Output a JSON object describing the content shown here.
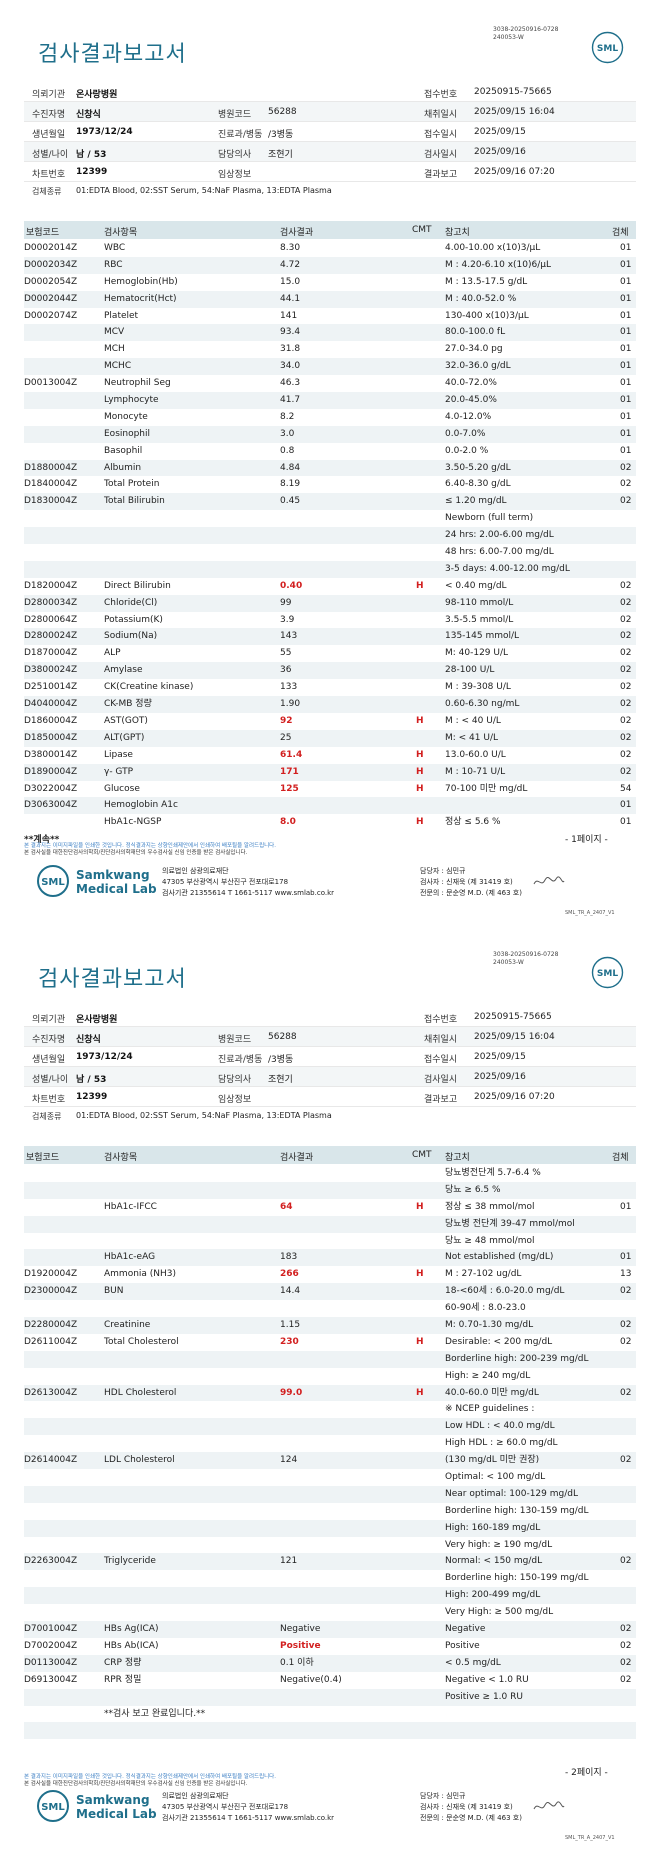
{
  "docno": [
    "3038-20250916-0728",
    "240053-W"
  ],
  "title": "검사결과보고서",
  "logo_text": "SML",
  "info": {
    "hospital_label": "의뢰기관",
    "hospital": "온사랑병원",
    "receipt_no_label": "접수번호",
    "receipt_no": "20250915-75665",
    "patient_label": "수진자명",
    "patient": "신창식",
    "hosp_code_label": "병원코드",
    "hosp_code": "56288",
    "collect_label": "채취일시",
    "collect": "2025/09/15 16:04",
    "dob_label": "생년월일",
    "dob": "1973/12/24",
    "dept_label": "진료과/병동",
    "dept": "/3병동",
    "receipt_date_label": "접수일시",
    "receipt_date": "2025/09/15",
    "sexage_label": "성별/나이",
    "sexage": "남 / 53",
    "doctor_label": "담당의사",
    "doctor": "조현기",
    "test_date_label": "검사일시",
    "test_date": "2025/09/16",
    "chart_label": "차트번호",
    "chart": "12399",
    "clinical_label": "임상정보",
    "clinical": "",
    "report_label": "결과보고",
    "report": "2025/09/16 07:20",
    "specimen_label": "검체종류",
    "specimen": "01:EDTA Blood, 02:SST Serum, 54:NaF Plasma, 13:EDTA Plasma"
  },
  "table_header": {
    "code": "보험코드",
    "item": "검사항목",
    "result": "검사결과",
    "cmt": "CMT",
    "ref": "참고치",
    "spec": "검체"
  },
  "page1_rows": [
    {
      "code": "D0002014Z",
      "item": "WBC",
      "result": "8.30",
      "flag": "",
      "ref": "4.00-10.00 x(10)3/μL",
      "spec": "01"
    },
    {
      "code": "D0002034Z",
      "item": "RBC",
      "result": "4.72",
      "flag": "",
      "ref": "M : 4.20-6.10 x(10)6/μL",
      "spec": "01"
    },
    {
      "code": "D0002054Z",
      "item": "Hemoglobin(Hb)",
      "result": "15.0",
      "flag": "",
      "ref": "M : 13.5-17.5 g/dL",
      "spec": "01"
    },
    {
      "code": "D0002044Z",
      "item": "Hematocrit(Hct)",
      "result": "44.1",
      "flag": "",
      "ref": "M : 40.0-52.0 %",
      "spec": "01"
    },
    {
      "code": "D0002074Z",
      "item": "Platelet",
      "result": "141",
      "flag": "",
      "ref": "130-400 x(10)3/μL",
      "spec": "01"
    },
    {
      "code": "",
      "item": "MCV",
      "result": "93.4",
      "flag": "",
      "ref": "80.0-100.0 fL",
      "spec": "01"
    },
    {
      "code": "",
      "item": "MCH",
      "result": "31.8",
      "flag": "",
      "ref": "27.0-34.0 pg",
      "spec": "01"
    },
    {
      "code": "",
      "item": "MCHC",
      "result": "34.0",
      "flag": "",
      "ref": "32.0-36.0 g/dL",
      "spec": "01"
    },
    {
      "code": "D0013004Z",
      "item": "Neutrophil Seg",
      "result": "46.3",
      "flag": "",
      "ref": "40.0-72.0%",
      "spec": "01"
    },
    {
      "code": "",
      "item": "Lymphocyte",
      "result": "41.7",
      "flag": "",
      "ref": "20.0-45.0%",
      "spec": "01"
    },
    {
      "code": "",
      "item": "Monocyte",
      "result": "8.2",
      "flag": "",
      "ref": "4.0-12.0%",
      "spec": "01"
    },
    {
      "code": "",
      "item": "Eosinophil",
      "result": "3.0",
      "flag": "",
      "ref": "0.0-7.0%",
      "spec": "01"
    },
    {
      "code": "",
      "item": "Basophil",
      "result": "0.8",
      "flag": "",
      "ref": "0.0-2.0 %",
      "spec": "01"
    },
    {
      "code": "D1880004Z",
      "item": "Albumin",
      "result": "4.84",
      "flag": "",
      "ref": "3.50-5.20 g/dL",
      "spec": "02"
    },
    {
      "code": "D1840004Z",
      "item": "Total Protein",
      "result": "8.19",
      "flag": "",
      "ref": "6.40-8.30 g/dL",
      "spec": "02"
    },
    {
      "code": "D1830004Z",
      "item": "Total Bilirubin",
      "result": "0.45",
      "flag": "",
      "ref": "≤ 1.20 mg/dL",
      "spec": "02"
    },
    {
      "code": "",
      "item": "",
      "result": "",
      "flag": "",
      "ref": "Newborn (full term)",
      "spec": ""
    },
    {
      "code": "",
      "item": "",
      "result": "",
      "flag": "",
      "ref": "24 hrs: 2.00-6.00 mg/dL",
      "spec": ""
    },
    {
      "code": "",
      "item": "",
      "result": "",
      "flag": "",
      "ref": "48 hrs: 6.00-7.00 mg/dL",
      "spec": ""
    },
    {
      "code": "",
      "item": "",
      "result": "",
      "flag": "",
      "ref": "3-5 days: 4.00-12.00 mg/dL",
      "spec": ""
    },
    {
      "code": "D1820004Z",
      "item": "Direct Bilirubin",
      "result": "0.40",
      "flag": "H",
      "ref": "< 0.40 mg/dL",
      "spec": "02"
    },
    {
      "code": "D2800034Z",
      "item": "Chloride(Cl)",
      "result": "99",
      "flag": "",
      "ref": "98-110 mmol/L",
      "spec": "02"
    },
    {
      "code": "D2800064Z",
      "item": "Potassium(K)",
      "result": "3.9",
      "flag": "",
      "ref": "3.5-5.5 mmol/L",
      "spec": "02"
    },
    {
      "code": "D2800024Z",
      "item": "Sodium(Na)",
      "result": "143",
      "flag": "",
      "ref": "135-145 mmol/L",
      "spec": "02"
    },
    {
      "code": "D1870004Z",
      "item": "ALP",
      "result": "55",
      "flag": "",
      "ref": "M: 40-129 U/L",
      "spec": "02"
    },
    {
      "code": "D3800024Z",
      "item": "Amylase",
      "result": "36",
      "flag": "",
      "ref": "28-100 U/L",
      "spec": "02"
    },
    {
      "code": "D2510014Z",
      "item": "CK(Creatine kinase)",
      "result": "133",
      "flag": "",
      "ref": "M : 39-308 U/L",
      "spec": "02"
    },
    {
      "code": "D4040004Z",
      "item": "CK-MB 정량",
      "result": "1.90",
      "flag": "",
      "ref": "0.60-6.30 ng/mL",
      "spec": "02"
    },
    {
      "code": "D1860004Z",
      "item": "AST(GOT)",
      "result": "92",
      "flag": "H",
      "ref": "M : < 40 U/L",
      "spec": "02"
    },
    {
      "code": "D1850004Z",
      "item": "ALT(GPT)",
      "result": "25",
      "flag": "",
      "ref": "M: < 41 U/L",
      "spec": "02"
    },
    {
      "code": "D3800014Z",
      "item": "Lipase",
      "result": "61.4",
      "flag": "H",
      "ref": "13.0-60.0 U/L",
      "spec": "02"
    },
    {
      "code": "D1890004Z",
      "item": "γ- GTP",
      "result": "171",
      "flag": "H",
      "ref": "M : 10-71 U/L",
      "spec": "02"
    },
    {
      "code": "D3022004Z",
      "item": "Glucose",
      "result": "125",
      "flag": "H",
      "ref": "70-100 미만 mg/dL",
      "spec": "54"
    },
    {
      "code": "D3063004Z",
      "item": "Hemoglobin A1c",
      "result": "",
      "flag": "",
      "ref": "",
      "spec": "01"
    },
    {
      "code": "",
      "item": "HbA1c-NGSP",
      "result": "8.0",
      "flag": "H",
      "ref": "정상 ≤ 5.6 %",
      "spec": "01"
    }
  ],
  "page2_rows": [
    {
      "code": "",
      "item": "",
      "result": "",
      "flag": "",
      "ref": "당뇨병전단계 5.7-6.4 %",
      "spec": ""
    },
    {
      "code": "",
      "item": "",
      "result": "",
      "flag": "",
      "ref": "당뇨 ≥ 6.5 %",
      "spec": ""
    },
    {
      "code": "",
      "item": "HbA1c-IFCC",
      "result": "64",
      "flag": "H",
      "ref": "정상 ≤ 38 mmol/mol",
      "spec": "01"
    },
    {
      "code": "",
      "item": "",
      "result": "",
      "flag": "",
      "ref": "당뇨병 전단계 39-47 mmol/mol",
      "spec": ""
    },
    {
      "code": "",
      "item": "",
      "result": "",
      "flag": "",
      "ref": "당뇨 ≥ 48 mmol/mol",
      "spec": ""
    },
    {
      "code": "",
      "item": "HbA1c-eAG",
      "result": "183",
      "flag": "",
      "ref": "Not established (mg/dL)",
      "spec": "01"
    },
    {
      "code": "D1920004Z",
      "item": "Ammonia (NH3)",
      "result": "266",
      "flag": "H",
      "ref": "M : 27-102 ug/dL",
      "spec": "13"
    },
    {
      "code": "D2300004Z",
      "item": "BUN",
      "result": "14.4",
      "flag": "",
      "ref": "18-<60세 : 6.0-20.0 mg/dL",
      "spec": "02"
    },
    {
      "code": "",
      "item": "",
      "result": "",
      "flag": "",
      "ref": "60-90세 : 8.0-23.0",
      "spec": ""
    },
    {
      "code": "D2280004Z",
      "item": "Creatinine",
      "result": "1.15",
      "flag": "",
      "ref": "M: 0.70-1.30 mg/dL",
      "spec": "02"
    },
    {
      "code": "D2611004Z",
      "item": "Total Cholesterol",
      "result": "230",
      "flag": "H",
      "ref": "Desirable: < 200 mg/dL",
      "spec": "02"
    },
    {
      "code": "",
      "item": "",
      "result": "",
      "flag": "",
      "ref": "Borderline high: 200-239 mg/dL",
      "spec": ""
    },
    {
      "code": "",
      "item": "",
      "result": "",
      "flag": "",
      "ref": "High: ≥ 240 mg/dL",
      "spec": ""
    },
    {
      "code": "D2613004Z",
      "item": "HDL Cholesterol",
      "result": "99.0",
      "flag": "H",
      "ref": "40.0-60.0 미만 mg/dL",
      "spec": "02"
    },
    {
      "code": "",
      "item": "",
      "result": "",
      "flag": "",
      "ref": "※ NCEP guidelines :",
      "spec": ""
    },
    {
      "code": "",
      "item": "",
      "result": "",
      "flag": "",
      "ref": "Low HDL : < 40.0 mg/dL",
      "spec": ""
    },
    {
      "code": "",
      "item": "",
      "result": "",
      "flag": "",
      "ref": "High HDL : ≥ 60.0 mg/dL",
      "spec": ""
    },
    {
      "code": "D2614004Z",
      "item": "LDL Cholesterol",
      "result": "124",
      "flag": "",
      "ref": "(130 mg/dL 미만 권장)",
      "spec": "02"
    },
    {
      "code": "",
      "item": "",
      "result": "",
      "flag": "",
      "ref": "Optimal: < 100 mg/dL",
      "spec": ""
    },
    {
      "code": "",
      "item": "",
      "result": "",
      "flag": "",
      "ref": "Near optimal: 100-129 mg/dL",
      "spec": ""
    },
    {
      "code": "",
      "item": "",
      "result": "",
      "flag": "",
      "ref": "Borderline high: 130-159 mg/dL",
      "spec": ""
    },
    {
      "code": "",
      "item": "",
      "result": "",
      "flag": "",
      "ref": "High: 160-189 mg/dL",
      "spec": ""
    },
    {
      "code": "",
      "item": "",
      "result": "",
      "flag": "",
      "ref": "Very high: ≥ 190 mg/dL",
      "spec": ""
    },
    {
      "code": "D2263004Z",
      "item": "Triglyceride",
      "result": "121",
      "flag": "",
      "ref": "Normal: < 150 mg/dL",
      "spec": "02"
    },
    {
      "code": "",
      "item": "",
      "result": "",
      "flag": "",
      "ref": "Borderline high: 150-199 mg/dL",
      "spec": ""
    },
    {
      "code": "",
      "item": "",
      "result": "",
      "flag": "",
      "ref": "High: 200-499 mg/dL",
      "spec": ""
    },
    {
      "code": "",
      "item": "",
      "result": "",
      "flag": "",
      "ref": "Very High: ≥ 500 mg/dL",
      "spec": ""
    },
    {
      "code": "D7001004Z",
      "item": "HBs Ag(ICA)",
      "result": "Negative",
      "flag": "",
      "ref": "Negative",
      "spec": "02"
    },
    {
      "code": "D7002004Z",
      "item": "HBs Ab(ICA)",
      "result": "Positive",
      "flag": "",
      "ref": "Positive",
      "spec": "02"
    },
    {
      "code": "D0113004Z",
      "item": "CRP 정량",
      "result": "0.1 이하",
      "flag": "",
      "ref": "< 0.5 mg/dL",
      "spec": "02"
    },
    {
      "code": "D6913004Z",
      "item": "RPR 정밀",
      "result": "Negative(0.4)",
      "flag": "",
      "ref": "Negative < 1.0 RU",
      "spec": "02"
    },
    {
      "code": "",
      "item": "",
      "result": "",
      "flag": "",
      "ref": "Positive ≥ 1.0 RU",
      "spec": ""
    },
    {
      "code": "",
      "item": "**검사 보고 완료입니다.**",
      "result": "",
      "flag": "",
      "ref": "",
      "spec": ""
    },
    {
      "code": "",
      "item": "",
      "result": "",
      "flag": "",
      "ref": "",
      "spec": ""
    }
  ],
  "abnormal_values": [
    "0.40",
    "92",
    "61.4",
    "171",
    "125",
    "8.0",
    "64",
    "266",
    "230",
    "99.0",
    "Positive"
  ],
  "continue_text": "**계속**",
  "page1_num": "- 1페이지 -",
  "page2_num": "- 2페이지 -",
  "notice1": "본 결과지는 이미지파일을 인쇄한 것입니다. 정식결과지는 상향인쇄제안에서 인쇄하여 배포될을 알려드립니다.",
  "notice2": "본 검사실을 대한진단검사의학회/진단검사의학재단의 우수검사실 신임 인증을 받은 검사실입니다.",
  "footer": {
    "brand1": "Samkwang",
    "brand2": "Medical Lab",
    "org1": "의료법인 삼광의료재단",
    "org2": "47305 부산광역시 부산진구 전포대로178",
    "org3": "검사기관 21355614 T 1661-5117 www.smlab.co.kr",
    "mgr1": "담당자 : 심민규",
    "mgr2": "검사자 : 신재욱 (제 31419 호)",
    "mgr3": "전문의 : 문순영 M.D. (제 463 호)"
  },
  "form_code": "SML_TR_A_2407_V1"
}
